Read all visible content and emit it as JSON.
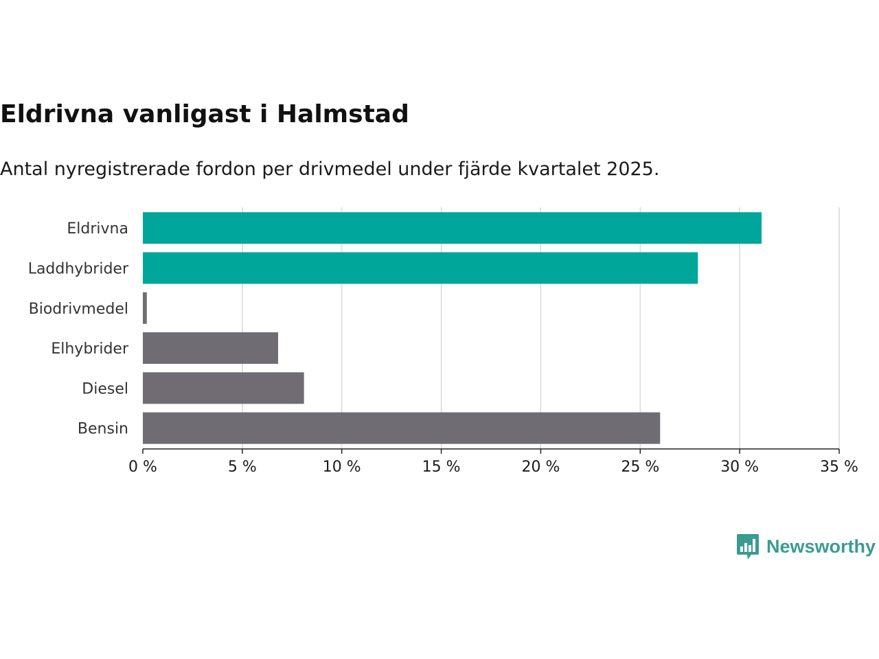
{
  "chart_data": {
    "type": "bar",
    "orientation": "horizontal",
    "title": "Eldrivna vanligast i Halmstad",
    "subtitle": "Antal nyregistrerade fordon per drivmedel under fjärde kvartalet 2025.",
    "categories": [
      "Eldrivna",
      "Laddhybrider",
      "Biodrivmedel",
      "Elhybrider",
      "Diesel",
      "Bensin"
    ],
    "values": [
      31.1,
      27.9,
      0.2,
      6.8,
      8.1,
      26.0
    ],
    "value_unit": "%",
    "xlim": [
      0,
      35
    ],
    "xticks": [
      0,
      5,
      10,
      15,
      20,
      25,
      30,
      35
    ],
    "xtick_labels": [
      "0 %",
      "5 %",
      "10 %",
      "15 %",
      "20 %",
      "25 %",
      "30 %",
      "35 %"
    ],
    "grid": true,
    "colors": [
      "#00a69a",
      "#00a69a",
      "#6f6d73",
      "#6f6d73",
      "#6f6d73",
      "#6f6d73"
    ],
    "grid_color": "#d9d9d9",
    "axis_color": "#222222"
  },
  "brand": {
    "name": "Newsworthy",
    "icon": "newsworthy-logo-icon",
    "color": "#3a9b92"
  }
}
